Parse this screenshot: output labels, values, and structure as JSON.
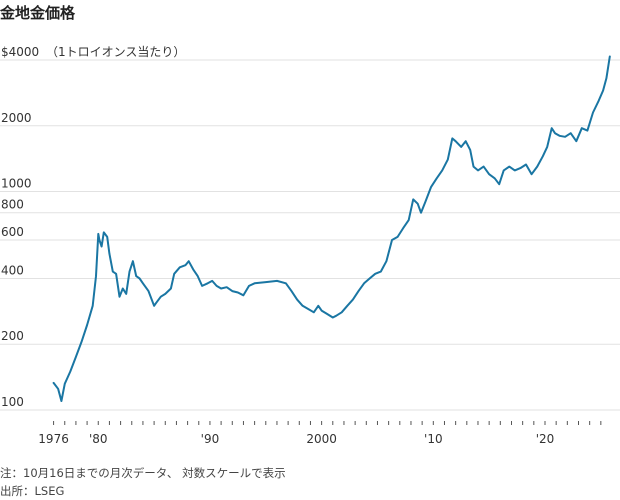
{
  "title": "金地金価格",
  "note": "注：10月16日までの月次データ、 対数スケールで表示",
  "source": "出所：LSEG",
  "colors": {
    "line": "#1a76a3",
    "grid": "#e2e2e2",
    "axis": "#555555"
  },
  "chart_data": {
    "type": "line",
    "title": "金地金価格",
    "ylabel": "",
    "unit_label": "（1トロイオンス当たり）",
    "yscale": "log",
    "ylim": [
      92,
      4400
    ],
    "xlim": [
      1975.5,
      2026.0
    ],
    "grid": true,
    "y_ticks": [
      {
        "value": 100,
        "label": "100"
      },
      {
        "value": 200,
        "label": "200"
      },
      {
        "value": 400,
        "label": "400"
      },
      {
        "value": 600,
        "label": "600"
      },
      {
        "value": 800,
        "label": "800"
      },
      {
        "value": 1000,
        "label": "1000"
      },
      {
        "value": 2000,
        "label": "2000"
      },
      {
        "value": 4000,
        "label": "$4000"
      }
    ],
    "x_ticks": [
      {
        "value": 1976,
        "label": "1976"
      },
      {
        "value": 1980,
        "label": "'80"
      },
      {
        "value": 1990,
        "label": "'90"
      },
      {
        "value": 2000,
        "label": "2000"
      },
      {
        "value": 2010,
        "label": "'10"
      },
      {
        "value": 2020,
        "label": "'20"
      }
    ],
    "series": [
      {
        "x": [
          1976.0,
          1976.4,
          1976.7,
          1977.0,
          1977.5,
          1978.0,
          1978.5,
          1979.0,
          1979.5,
          1979.8,
          1980.0,
          1980.1,
          1980.3,
          1980.5,
          1980.8,
          1981.0,
          1981.3,
          1981.6,
          1981.9,
          1982.2,
          1982.5,
          1982.8,
          1983.1,
          1983.4,
          1983.7,
          1984.0,
          1984.5,
          1985.0,
          1985.2,
          1985.6,
          1986.0,
          1986.5,
          1986.8,
          1987.3,
          1987.8,
          1988.1,
          1988.5,
          1988.9,
          1989.3,
          1989.8,
          1990.2,
          1990.6,
          1991.0,
          1991.5,
          1992.0,
          1992.5,
          1993.0,
          1993.5,
          1994.0,
          1995.0,
          1996.0,
          1996.8,
          1997.3,
          1997.8,
          1998.3,
          1998.8,
          1999.3,
          1999.7,
          2000.0,
          2000.5,
          2001.0,
          2001.3,
          2001.8,
          2002.3,
          2002.8,
          2003.3,
          2003.8,
          2004.3,
          2004.8,
          2005.3,
          2005.8,
          2006.3,
          2006.8,
          2007.3,
          2007.8,
          2008.2,
          2008.6,
          2008.9,
          2009.3,
          2009.8,
          2010.3,
          2010.8,
          2011.3,
          2011.7,
          2012.0,
          2012.5,
          2012.9,
          2013.3,
          2013.6,
          2014.0,
          2014.5,
          2015.0,
          2015.5,
          2015.9,
          2016.3,
          2016.8,
          2017.3,
          2017.8,
          2018.3,
          2018.8,
          2019.3,
          2019.8,
          2020.2,
          2020.6,
          2020.9,
          2021.3,
          2021.8,
          2022.3,
          2022.8,
          2023.3,
          2023.8,
          2024.3,
          2024.8,
          2025.2,
          2025.5,
          2025.8
        ],
        "y": [
          133,
          125,
          110,
          132,
          150,
          175,
          205,
          245,
          300,
          410,
          640,
          600,
          560,
          650,
          620,
          520,
          430,
          420,
          330,
          360,
          340,
          430,
          480,
          410,
          400,
          380,
          350,
          300,
          310,
          330,
          340,
          360,
          420,
          450,
          460,
          480,
          440,
          410,
          370,
          380,
          390,
          370,
          360,
          365,
          350,
          345,
          335,
          370,
          380,
          385,
          390,
          380,
          350,
          320,
          300,
          290,
          280,
          300,
          285,
          275,
          265,
          270,
          280,
          300,
          320,
          350,
          380,
          400,
          420,
          430,
          480,
          600,
          620,
          680,
          740,
          920,
          880,
          800,
          900,
          1050,
          1150,
          1250,
          1400,
          1750,
          1700,
          1600,
          1700,
          1550,
          1300,
          1250,
          1300,
          1200,
          1150,
          1080,
          1250,
          1300,
          1250,
          1280,
          1330,
          1200,
          1300,
          1450,
          1600,
          1950,
          1850,
          1800,
          1780,
          1850,
          1700,
          1950,
          1900,
          2300,
          2600,
          2900,
          3300,
          4150
        ]
      }
    ]
  }
}
